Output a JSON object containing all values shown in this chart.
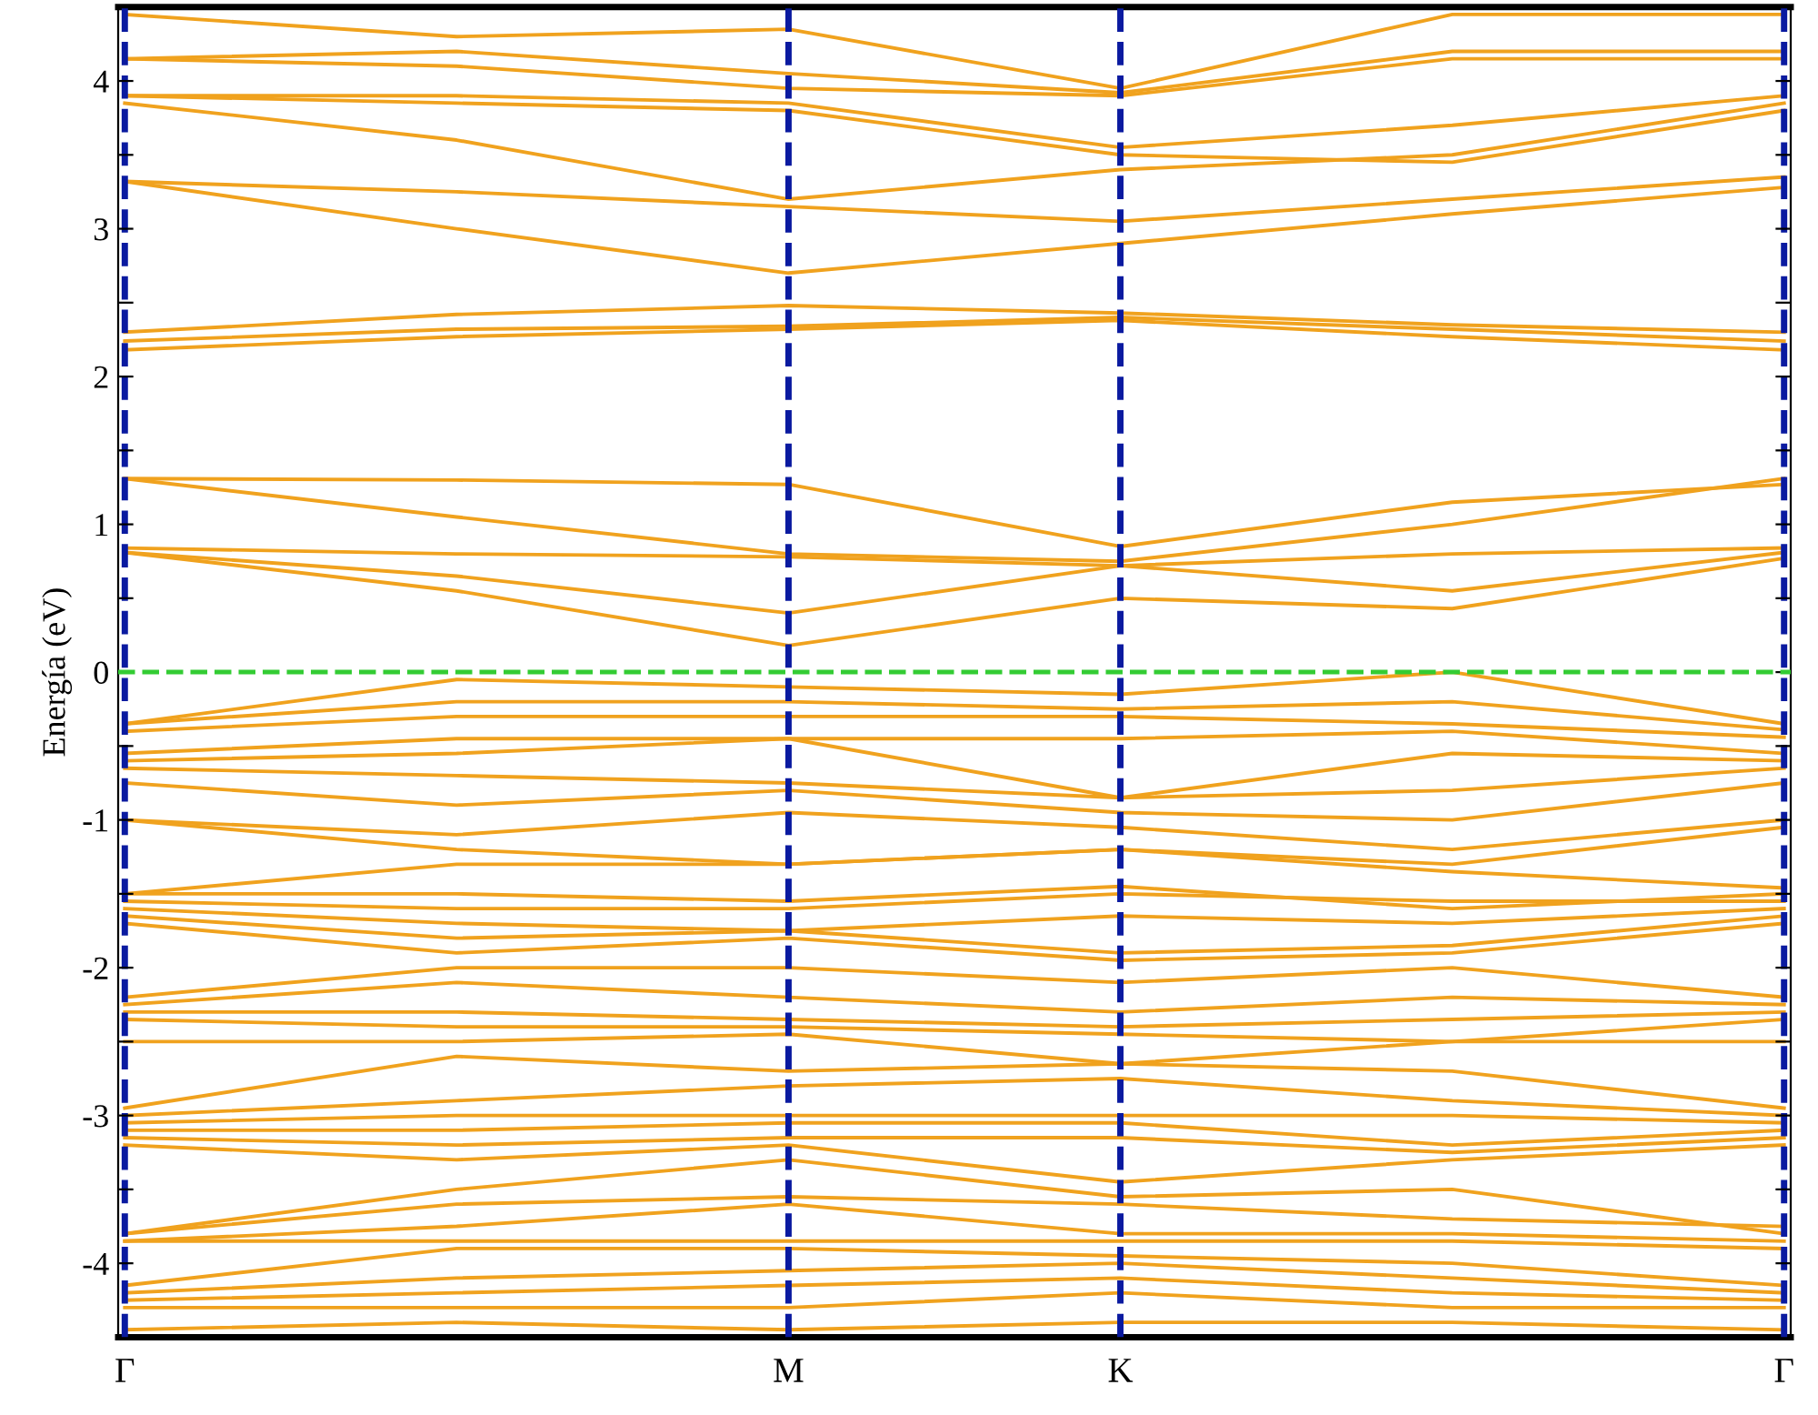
{
  "chart_data": {
    "type": "line",
    "ylabel": "Energía (eV)",
    "categories": [
      "Γ",
      null,
      "M",
      "K",
      null,
      "Γ"
    ],
    "ylim": [
      -4.5,
      4.5
    ],
    "yticks": [
      -4,
      {
        "value": -3.5,
        "label": null
      },
      -3,
      {
        "value": -2.5,
        "label": null
      },
      -2,
      {
        "value": -1.5,
        "label": null
      },
      -1,
      {
        "value": -0.5,
        "label": null
      },
      0,
      {
        "value": 0.5,
        "label": null
      },
      1,
      {
        "value": 1.5,
        "label": null
      },
      2,
      {
        "value": 2.5,
        "label": null
      },
      3,
      {
        "value": 3.5,
        "label": null
      },
      4
    ],
    "grid": "x",
    "legend": false,
    "marker": "none",
    "line_style": "solid",
    "ref_lines": [
      {
        "axis": "y",
        "value": 0,
        "color": "#33cc33",
        "line_style": "dashed"
      }
    ],
    "series": [
      {
        "color": "#f0a21e",
        "values": [
          0.81,
          0.55,
          0.18,
          0.5,
          0.43,
          0.77
        ]
      },
      {
        "color": "#f0a21e",
        "values": [
          0.81,
          0.65,
          0.4,
          0.72,
          0.55,
          0.81
        ]
      },
      {
        "color": "#f0a21e",
        "values": [
          0.84,
          0.8,
          0.78,
          0.72,
          0.8,
          0.84
        ]
      },
      {
        "color": "#f0a21e",
        "values": [
          1.31,
          1.05,
          0.8,
          0.75,
          1.0,
          1.31
        ]
      },
      {
        "color": "#f0a21e",
        "values": [
          1.31,
          1.3,
          1.27,
          0.85,
          1.15,
          1.27
        ]
      },
      {
        "color": "#f0a21e",
        "values": [
          2.18,
          2.27,
          2.32,
          2.38,
          2.27,
          2.18
        ]
      },
      {
        "color": "#f0a21e",
        "values": [
          2.24,
          2.32,
          2.34,
          2.4,
          2.32,
          2.24
        ]
      },
      {
        "color": "#f0a21e",
        "values": [
          2.3,
          2.42,
          2.48,
          2.43,
          2.35,
          2.3
        ]
      },
      {
        "color": "#f0a21e",
        "values": [
          3.32,
          3.0,
          2.7,
          2.9,
          3.1,
          3.28
        ]
      },
      {
        "color": "#f0a21e",
        "values": [
          3.32,
          3.25,
          3.15,
          3.05,
          3.2,
          3.35
        ]
      },
      {
        "color": "#f0a21e",
        "values": [
          3.85,
          3.6,
          3.2,
          3.4,
          3.5,
          3.85
        ]
      },
      {
        "color": "#f0a21e",
        "values": [
          3.9,
          3.85,
          3.8,
          3.5,
          3.45,
          3.8
        ]
      },
      {
        "color": "#f0a21e",
        "values": [
          3.9,
          3.9,
          3.85,
          3.55,
          3.7,
          3.9
        ]
      },
      {
        "color": "#f0a21e",
        "values": [
          4.15,
          4.1,
          3.95,
          3.9,
          4.15,
          4.15
        ]
      },
      {
        "color": "#f0a21e",
        "values": [
          4.15,
          4.2,
          4.05,
          3.92,
          4.2,
          4.2
        ]
      },
      {
        "color": "#f0a21e",
        "values": [
          4.45,
          4.3,
          4.35,
          3.95,
          4.45,
          4.45
        ]
      },
      {
        "color": "#f0a21e",
        "values": [
          -0.35,
          -0.05,
          -0.1,
          -0.15,
          0.0,
          -0.35
        ]
      },
      {
        "color": "#f0a21e",
        "values": [
          -0.35,
          -0.2,
          -0.2,
          -0.25,
          -0.2,
          -0.39
        ]
      },
      {
        "color": "#f0a21e",
        "values": [
          -0.4,
          -0.3,
          -0.3,
          -0.3,
          -0.35,
          -0.44
        ]
      },
      {
        "color": "#f0a21e",
        "values": [
          -0.55,
          -0.45,
          -0.45,
          -0.45,
          -0.4,
          -0.55
        ]
      },
      {
        "color": "#f0a21e",
        "values": [
          -0.6,
          -0.55,
          -0.45,
          -0.85,
          -0.55,
          -0.6
        ]
      },
      {
        "color": "#f0a21e",
        "values": [
          -0.65,
          -0.7,
          -0.75,
          -0.85,
          -0.8,
          -0.65
        ]
      },
      {
        "color": "#f0a21e",
        "values": [
          -0.75,
          -0.9,
          -0.8,
          -0.95,
          -1.0,
          -0.75
        ]
      },
      {
        "color": "#f0a21e",
        "values": [
          -1.0,
          -1.1,
          -0.95,
          -1.05,
          -1.2,
          -1.0
        ]
      },
      {
        "color": "#f0a21e",
        "values": [
          -1.0,
          -1.2,
          -1.3,
          -1.2,
          -1.3,
          -1.05
        ]
      },
      {
        "color": "#f0a21e",
        "values": [
          -1.5,
          -1.3,
          -1.3,
          -1.2,
          -1.35,
          -1.46
        ]
      },
      {
        "color": "#f0a21e",
        "values": [
          -1.5,
          -1.5,
          -1.55,
          -1.45,
          -1.6,
          -1.5
        ]
      },
      {
        "color": "#f0a21e",
        "values": [
          -1.55,
          -1.6,
          -1.6,
          -1.5,
          -1.55,
          -1.55
        ]
      },
      {
        "color": "#f0a21e",
        "values": [
          -1.6,
          -1.7,
          -1.75,
          -1.65,
          -1.7,
          -1.6
        ]
      },
      {
        "color": "#f0a21e",
        "values": [
          -1.65,
          -1.8,
          -1.75,
          -1.9,
          -1.85,
          -1.65
        ]
      },
      {
        "color": "#f0a21e",
        "values": [
          -1.7,
          -1.9,
          -1.8,
          -1.95,
          -1.9,
          -1.7
        ]
      },
      {
        "color": "#f0a21e",
        "values": [
          -2.2,
          -2.0,
          -2.0,
          -2.1,
          -2.0,
          -2.2
        ]
      },
      {
        "color": "#f0a21e",
        "values": [
          -2.25,
          -2.1,
          -2.2,
          -2.3,
          -2.2,
          -2.25
        ]
      },
      {
        "color": "#f0a21e",
        "values": [
          -2.3,
          -2.3,
          -2.35,
          -2.4,
          -2.35,
          -2.3
        ]
      },
      {
        "color": "#f0a21e",
        "values": [
          -2.35,
          -2.4,
          -2.4,
          -2.45,
          -2.5,
          -2.35
        ]
      },
      {
        "color": "#f0a21e",
        "values": [
          -2.5,
          -2.5,
          -2.45,
          -2.65,
          -2.5,
          -2.5
        ]
      },
      {
        "color": "#f0a21e",
        "values": [
          -2.95,
          -2.6,
          -2.7,
          -2.65,
          -2.7,
          -2.95
        ]
      },
      {
        "color": "#f0a21e",
        "values": [
          -3.0,
          -2.9,
          -2.8,
          -2.75,
          -2.9,
          -3.0
        ]
      },
      {
        "color": "#f0a21e",
        "values": [
          -3.05,
          -3.0,
          -3.0,
          -3.0,
          -3.0,
          -3.05
        ]
      },
      {
        "color": "#f0a21e",
        "values": [
          -3.1,
          -3.1,
          -3.05,
          -3.05,
          -3.2,
          -3.1
        ]
      },
      {
        "color": "#f0a21e",
        "values": [
          -3.15,
          -3.2,
          -3.15,
          -3.15,
          -3.25,
          -3.15
        ]
      },
      {
        "color": "#f0a21e",
        "values": [
          -3.2,
          -3.3,
          -3.2,
          -3.45,
          -3.3,
          -3.2
        ]
      },
      {
        "color": "#f0a21e",
        "values": [
          -3.8,
          -3.5,
          -3.3,
          -3.55,
          -3.5,
          -3.8
        ]
      },
      {
        "color": "#f0a21e",
        "values": [
          -3.8,
          -3.6,
          -3.55,
          -3.6,
          -3.7,
          -3.75
        ]
      },
      {
        "color": "#f0a21e",
        "values": [
          -3.85,
          -3.75,
          -3.6,
          -3.8,
          -3.8,
          -3.85
        ]
      },
      {
        "color": "#f0a21e",
        "values": [
          -3.85,
          -3.85,
          -3.85,
          -3.85,
          -3.85,
          -3.9
        ]
      },
      {
        "color": "#f0a21e",
        "values": [
          -4.15,
          -3.9,
          -3.9,
          -3.95,
          -4.0,
          -4.15
        ]
      },
      {
        "color": "#f0a21e",
        "values": [
          -4.2,
          -4.1,
          -4.05,
          -4.0,
          -4.1,
          -4.2
        ]
      },
      {
        "color": "#f0a21e",
        "values": [
          -4.25,
          -4.2,
          -4.15,
          -4.1,
          -4.2,
          -4.25
        ]
      },
      {
        "color": "#f0a21e",
        "values": [
          -4.3,
          -4.3,
          -4.3,
          -4.2,
          -4.3,
          -4.3
        ]
      },
      {
        "color": "#f0a21e",
        "values": [
          -4.45,
          -4.4,
          -4.45,
          -4.4,
          -4.4,
          -4.45
        ]
      }
    ]
  }
}
